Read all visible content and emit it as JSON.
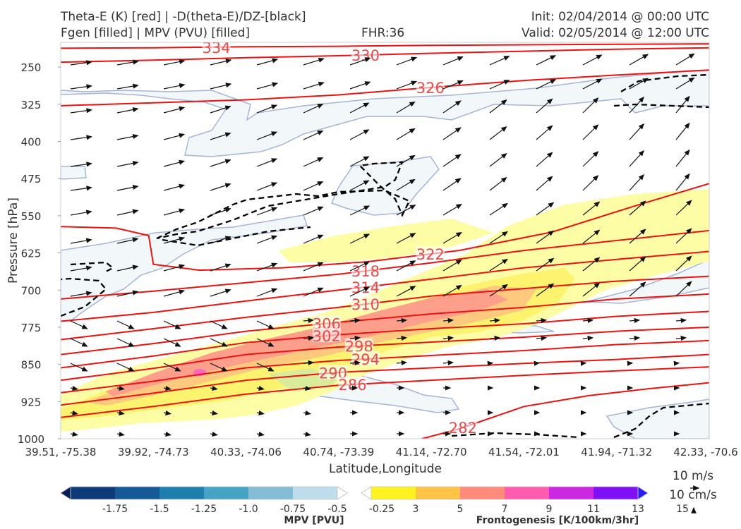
{
  "header": {
    "title_line1": "Theta-E (K) [red] | -D(theta-E)/DZ-[black]",
    "title_line2": "Fgen [filled] | MPV (PVU) [filled]",
    "fhr": "FHR:36",
    "init": "Init: 02/04/2014 @ 00:00 UTC",
    "valid": "Valid: 02/05/2014 @ 12:00 UTC"
  },
  "chart_data": {
    "type": "cross-section",
    "xlabel": "Latitude,Longitude",
    "ylabel": "Pressure [hPa]",
    "x_ticks": [
      "39.51, -75.38",
      "39.92, -74.73",
      "40.33, -74.06",
      "40.74, -73.39",
      "41.14, -72.70",
      "41.54, -72.01",
      "41.94, -71.32",
      "42.33, -70.6"
    ],
    "y_ticks": [
      250,
      325,
      400,
      475,
      550,
      625,
      700,
      775,
      850,
      925,
      1000
    ],
    "ylim": [
      1000,
      200
    ],
    "theta_e_contours": [
      {
        "label": "334",
        "points": [
          [
            0,
            212
          ],
          [
            1,
            211
          ],
          [
            2,
            209
          ],
          [
            3,
            208
          ],
          [
            4,
            206
          ],
          [
            5,
            205
          ],
          [
            6,
            204
          ],
          [
            7,
            203
          ]
        ]
      },
      {
        "label": "330",
        "points": [
          [
            0,
            240
          ],
          [
            1,
            236
          ],
          [
            2,
            231
          ],
          [
            3,
            227
          ],
          [
            4,
            222
          ],
          [
            5,
            218
          ],
          [
            6,
            214
          ],
          [
            7,
            211
          ]
        ]
      },
      {
        "label": "326",
        "points": [
          [
            0,
            328
          ],
          [
            1,
            322
          ],
          [
            2,
            316
          ],
          [
            3,
            306
          ],
          [
            4,
            291
          ],
          [
            5,
            277
          ],
          [
            6,
            266
          ],
          [
            7,
            256
          ]
        ]
      },
      {
        "label": "322",
        "points": [
          [
            0,
            572
          ],
          [
            0.6,
            575
          ],
          [
            0.95,
            590
          ],
          [
            1,
            648
          ],
          [
            1.5,
            660
          ],
          [
            2.4,
            655
          ],
          [
            3.3,
            643
          ],
          [
            4.3,
            620
          ],
          [
            5.3,
            583
          ],
          [
            6.2,
            530
          ],
          [
            7,
            485
          ]
        ]
      },
      {
        "label": "318",
        "points": [
          [
            0,
            718
          ],
          [
            1,
            702
          ],
          [
            2,
            685
          ],
          [
            3,
            668
          ],
          [
            4,
            645
          ],
          [
            5,
            620
          ],
          [
            6,
            600
          ],
          [
            7,
            580
          ]
        ]
      },
      {
        "label": "314",
        "points": [
          [
            0,
            763
          ],
          [
            1,
            745
          ],
          [
            2,
            722
          ],
          [
            3,
            700
          ],
          [
            4,
            678
          ],
          [
            5,
            655
          ],
          [
            6,
            638
          ],
          [
            7,
            622
          ]
        ]
      },
      {
        "label": "310",
        "points": [
          [
            0,
            800
          ],
          [
            1,
            778
          ],
          [
            2,
            755
          ],
          [
            3,
            735
          ],
          [
            4,
            712
          ],
          [
            5,
            697
          ],
          [
            6,
            682
          ],
          [
            7,
            672
          ]
        ]
      },
      {
        "label": "306",
        "points": [
          [
            0,
            830
          ],
          [
            1,
            808
          ],
          [
            2,
            783
          ],
          [
            3,
            765
          ],
          [
            4,
            748
          ],
          [
            5,
            735
          ],
          [
            6,
            718
          ],
          [
            7,
            708
          ]
        ]
      },
      {
        "label": "302",
        "points": [
          [
            0,
            857
          ],
          [
            1,
            833
          ],
          [
            2,
            806
          ],
          [
            3,
            790
          ],
          [
            4,
            778
          ],
          [
            5,
            768
          ],
          [
            6,
            753
          ],
          [
            7,
            743
          ]
        ]
      },
      {
        "label": "298",
        "points": [
          [
            0,
            882
          ],
          [
            1,
            858
          ],
          [
            2,
            830
          ],
          [
            3,
            815
          ],
          [
            4,
            805
          ],
          [
            5,
            795
          ],
          [
            6,
            783
          ],
          [
            7,
            775
          ]
        ]
      },
      {
        "label": "294",
        "points": [
          [
            0,
            907
          ],
          [
            1,
            884
          ],
          [
            2,
            857
          ],
          [
            3,
            842
          ],
          [
            4,
            832
          ],
          [
            5,
            822
          ],
          [
            6,
            810
          ],
          [
            7,
            802
          ]
        ]
      },
      {
        "label": "290",
        "points": [
          [
            0,
            932
          ],
          [
            1,
            908
          ],
          [
            2,
            882
          ],
          [
            3,
            866
          ],
          [
            4,
            857
          ],
          [
            5,
            848
          ],
          [
            6,
            840
          ],
          [
            7,
            830
          ]
        ]
      },
      {
        "label": "286",
        "points": [
          [
            0,
            957
          ],
          [
            1,
            935
          ],
          [
            2,
            910
          ],
          [
            3,
            892
          ],
          [
            4,
            882
          ],
          [
            5,
            872
          ],
          [
            6,
            863
          ],
          [
            7,
            855
          ]
        ]
      },
      {
        "label": "282",
        "points": [
          [
            3.9,
            1000
          ],
          [
            4.3,
            980
          ],
          [
            5,
            935
          ],
          [
            5.7,
            913
          ],
          [
            6.3,
            900
          ],
          [
            7,
            887
          ]
        ]
      }
    ],
    "mpv_colorbar": {
      "label": "MPV [PVU]",
      "ticks": [
        "-1.75",
        "-1.5",
        "-1.25",
        "-1.0",
        "-0.75",
        "-0.5",
        "-0.25"
      ],
      "colors": [
        "#081d58",
        "#0d3b7a",
        "#155a96",
        "#1e7fad",
        "#47a3c6",
        "#86bdd6",
        "#bcdde9",
        "#ffffff"
      ]
    },
    "fgen_colorbar": {
      "label": "Frontogenesis [K/100km/3hr]",
      "ticks": [
        "3",
        "5",
        "7",
        "9",
        "11",
        "13",
        "15"
      ],
      "colors": [
        "#ffffff",
        "#fff21f",
        "#ffc445",
        "#ff8c7a",
        "#ff5cae",
        "#cc28e0",
        "#7e10f6",
        "#2a1bff"
      ]
    },
    "wind_key": {
      "horizontal": "10 m/s",
      "vertical": "10 cm/s"
    }
  }
}
